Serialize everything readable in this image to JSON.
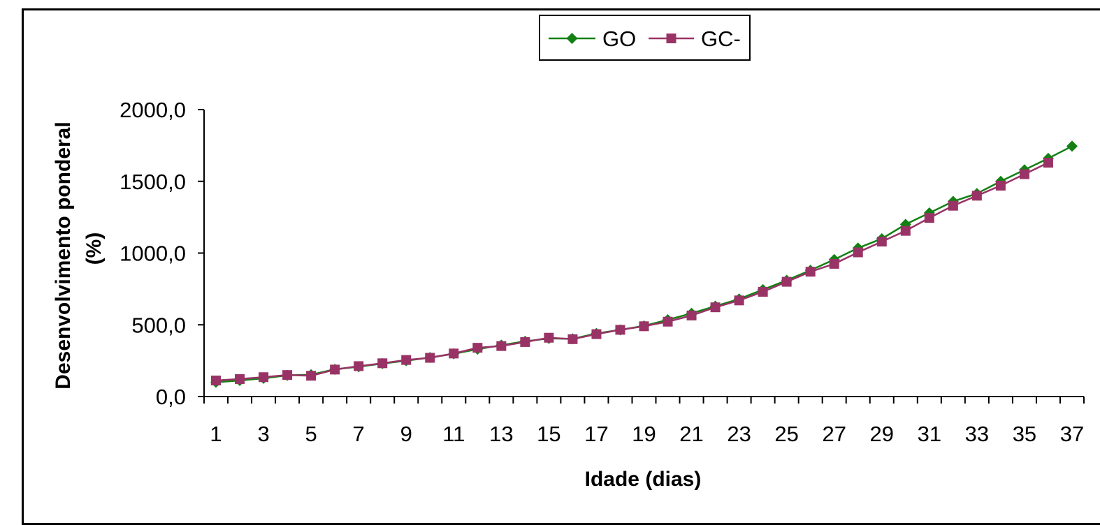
{
  "chart_data": {
    "type": "line",
    "title": "",
    "xlabel": "Idade (dias)",
    "ylabel": "Desenvolvimento ponderal",
    "ylabel_line2": "(%)",
    "x": [
      1,
      2,
      3,
      4,
      5,
      6,
      7,
      8,
      9,
      10,
      11,
      12,
      13,
      14,
      15,
      16,
      17,
      18,
      19,
      20,
      21,
      22,
      23,
      24,
      25,
      26,
      27,
      28,
      29,
      30,
      31,
      32,
      33,
      34,
      35,
      36,
      37
    ],
    "x_tick_labels": [
      "1",
      "3",
      "5",
      "7",
      "9",
      "11",
      "13",
      "15",
      "17",
      "19",
      "21",
      "23",
      "25",
      "27",
      "29",
      "31",
      "33",
      "35",
      "37"
    ],
    "y_tick_labels": [
      "0,0",
      "500,0",
      "1000,0",
      "1500,0",
      "2000,0"
    ],
    "ylim": [
      0,
      2000
    ],
    "y_ticks": [
      0,
      500,
      1000,
      1500,
      2000
    ],
    "grid": false,
    "legend_position": "top-center",
    "series": [
      {
        "name": "GO",
        "color": "#138013",
        "marker": "diamond",
        "values": [
          100,
          112,
          127,
          148,
          152,
          190,
          208,
          230,
          250,
          272,
          298,
          330,
          358,
          385,
          405,
          402,
          440,
          465,
          492,
          535,
          580,
          630,
          680,
          745,
          810,
          880,
          955,
          1035,
          1100,
          1200,
          1280,
          1360,
          1415,
          1500,
          1580,
          1660,
          1745
        ]
      },
      {
        "name": "GC-",
        "color": "#993366",
        "marker": "square",
        "values": [
          112,
          122,
          135,
          150,
          145,
          188,
          212,
          232,
          255,
          270,
          300,
          340,
          352,
          380,
          410,
          400,
          435,
          465,
          490,
          522,
          565,
          622,
          670,
          730,
          800,
          870,
          925,
          1005,
          1080,
          1155,
          1245,
          1330,
          1400,
          1470,
          1550,
          1630,
          null
        ]
      }
    ]
  }
}
